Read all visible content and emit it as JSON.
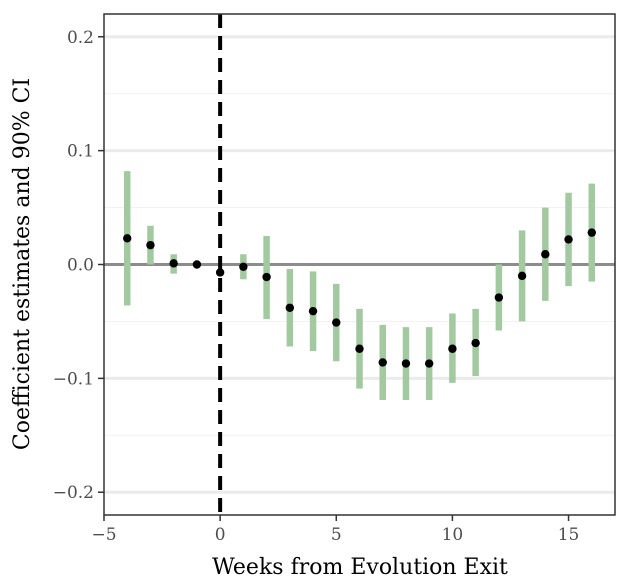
{
  "chart_data": {
    "type": "scatter",
    "xlabel": "Weeks from Evolution Exit",
    "ylabel": "Coefficient estimates and 90% CI",
    "xlim": [
      -5,
      17
    ],
    "ylim": [
      -0.22,
      0.22
    ],
    "x_ticks": [
      -5,
      0,
      5,
      10,
      15
    ],
    "x_tick_labels": [
      "−5",
      "0",
      "5",
      "10",
      "15"
    ],
    "y_ticks": [
      -0.2,
      -0.1,
      0.0,
      0.1,
      0.2
    ],
    "y_tick_labels": [
      "−0.2",
      "−0.1",
      "0.0",
      "0.1",
      "0.2"
    ],
    "grid": true,
    "reference_lines": {
      "horizontal_y": 0,
      "vertical_dashed_x": 0
    },
    "colors": {
      "ci_bar": "#a3c9a0",
      "point": "#000000",
      "zero_line": "#8c8c8c",
      "gridline": "#ebebeb"
    },
    "series": [
      {
        "x": [
          -4,
          -3,
          -2,
          -1,
          0,
          1,
          2,
          3,
          4,
          5,
          6,
          7,
          8,
          9,
          10,
          11,
          12,
          13,
          14,
          15,
          16
        ],
        "y": [
          0.023,
          0.017,
          0.001,
          0.0,
          -0.007,
          -0.002,
          -0.011,
          -0.038,
          -0.041,
          -0.051,
          -0.074,
          -0.086,
          -0.087,
          -0.087,
          -0.074,
          -0.069,
          -0.029,
          -0.01,
          0.009,
          0.022,
          0.028
        ],
        "lower": [
          -0.036,
          0.0,
          -0.008,
          0.0,
          -0.007,
          -0.013,
          -0.048,
          -0.072,
          -0.076,
          -0.085,
          -0.109,
          -0.119,
          -0.119,
          -0.119,
          -0.104,
          -0.098,
          -0.058,
          -0.05,
          -0.032,
          -0.019,
          -0.015
        ],
        "upper": [
          0.082,
          0.034,
          0.009,
          0.0,
          -0.007,
          0.009,
          0.025,
          -0.004,
          -0.006,
          -0.017,
          -0.039,
          -0.053,
          -0.055,
          -0.055,
          -0.043,
          -0.039,
          0.0,
          0.03,
          0.05,
          0.063,
          0.071
        ]
      }
    ]
  }
}
